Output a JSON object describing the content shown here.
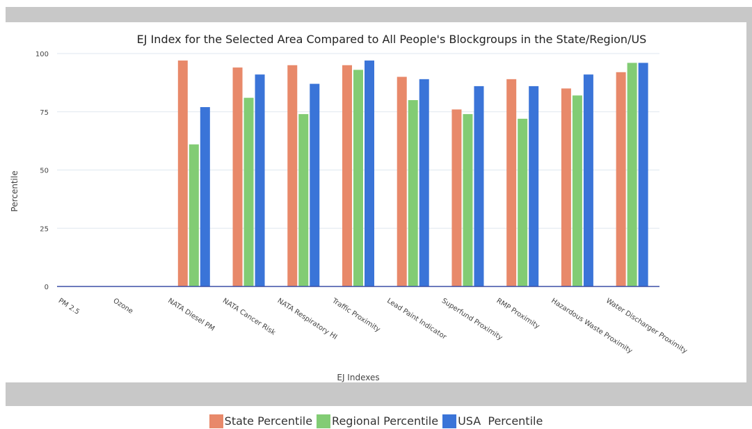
{
  "chart_data": {
    "type": "bar",
    "title": "EJ Index for the Selected Area Compared to All People's Blockgroups in the State/Region/US",
    "xlabel": "EJ Indexes",
    "ylabel": "Percentile",
    "ylim": [
      0,
      100
    ],
    "yticks": [
      0,
      25,
      50,
      75,
      100
    ],
    "grid": true,
    "legend_position": "bottom",
    "categories": [
      "PM 2.5",
      "Ozone",
      "NATA Diesel PM",
      "NATA Cancer Risk",
      "NATA Respiratory HI",
      "Traffic Proximity",
      "Lead Paint Indicator",
      "Superfund Proximity",
      "RMP Proximity",
      "Hazardous Waste Proximity",
      "Water Discharger Proximity"
    ],
    "series": [
      {
        "name": "State Percentile",
        "color": "#e8896a",
        "values": [
          null,
          null,
          97,
          94,
          95,
          95,
          90,
          76,
          89,
          85,
          92
        ]
      },
      {
        "name": "Regional Percentile",
        "color": "#82cc74",
        "values": [
          null,
          null,
          61,
          81,
          74,
          93,
          80,
          74,
          72,
          82,
          96
        ]
      },
      {
        "name": "USA  Percentile",
        "color": "#3a74d8",
        "values": [
          null,
          null,
          77,
          91,
          87,
          97,
          89,
          86,
          86,
          91,
          96
        ]
      }
    ]
  }
}
